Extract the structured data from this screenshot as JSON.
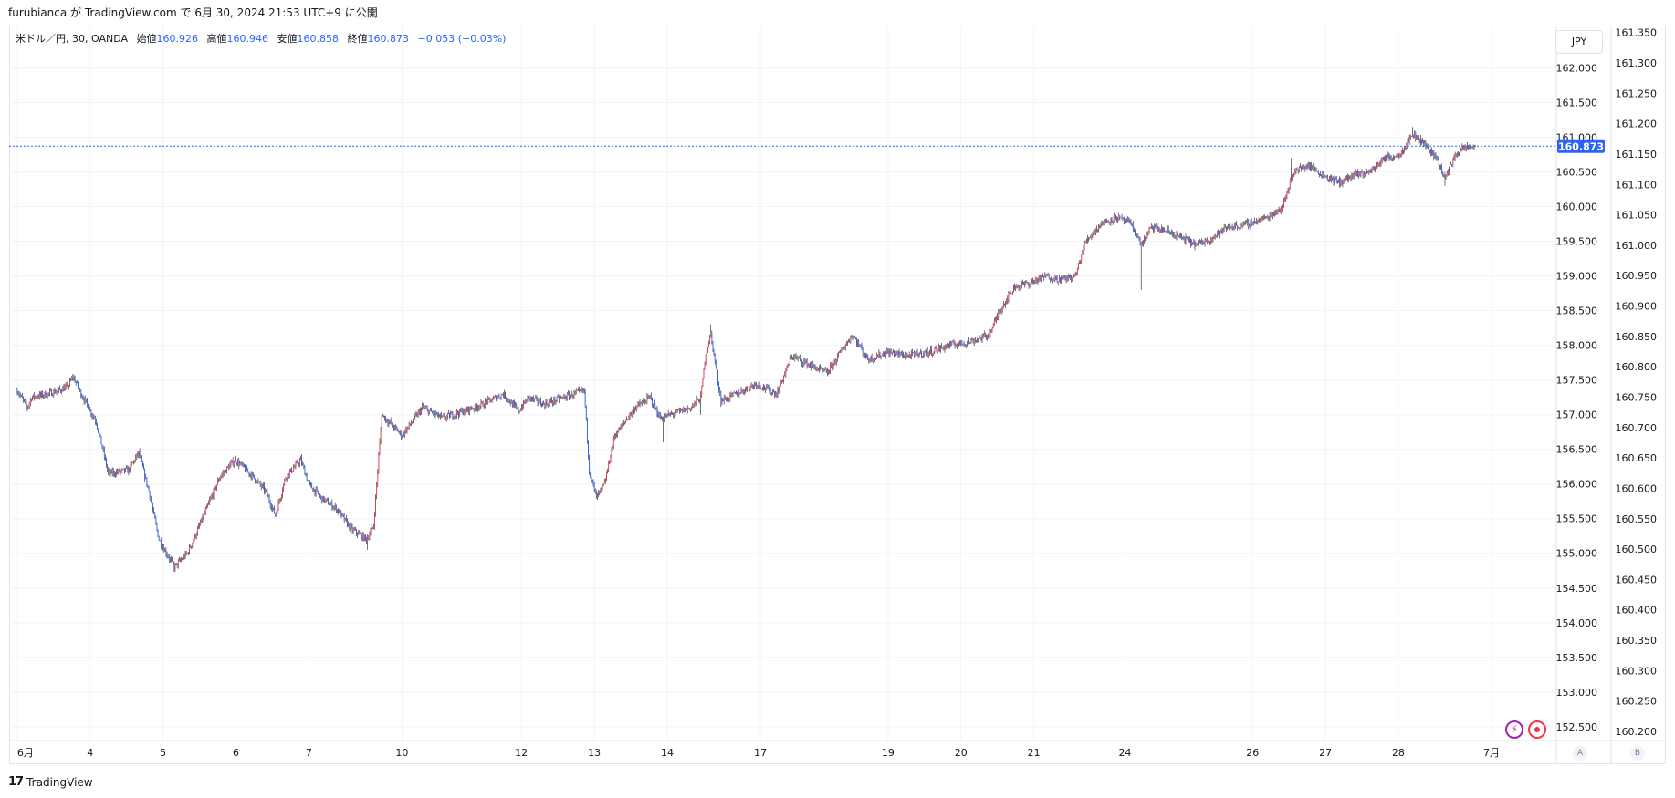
{
  "caption": {
    "text": "furubianca が TradingView.com で 6月 30, 2024 21:53 UTC+9 に公開"
  },
  "legend": {
    "symbol": "米ドル／円, 30, OANDA",
    "open_label": "始値",
    "open": "160.926",
    "high_label": "高値",
    "high": "160.946",
    "low_label": "安値",
    "low": "160.858",
    "close_label": "終値",
    "close": "160.873",
    "change": "−0.053 (−0.03%)"
  },
  "currency_button": "JPY",
  "footer": {
    "logo_mark": "17",
    "logo_text": "TradingView"
  },
  "scale_buttons": {
    "a": "A",
    "b": "B"
  },
  "icons": {
    "flash": "lightning-icon",
    "record": "record-icon"
  },
  "colors": {
    "up": "#f23645",
    "down": "#2962ff",
    "wick": "#131722",
    "price_line": "#2962ff",
    "grid": "#f0f3fa",
    "axis_text": "#131722"
  },
  "chart_data": {
    "type": "candlestick",
    "symbol": "USDJPY",
    "interval": "30",
    "last_price": 160.873,
    "last_price_label": "160.873",
    "inner_axis": {
      "ylim": [
        152.3,
        162.6
      ],
      "ticks": [
        "162.000",
        "161.500",
        "161.000",
        "160.500",
        "160.000",
        "159.500",
        "159.000",
        "158.500",
        "158.000",
        "157.500",
        "157.000",
        "156.500",
        "156.000",
        "155.500",
        "155.000",
        "154.500",
        "154.000",
        "153.500",
        "153.000",
        "152.500"
      ]
    },
    "outer_axis": {
      "ylim": [
        160.185,
        161.36
      ],
      "ticks": [
        "161.350",
        "161.300",
        "161.250",
        "161.200",
        "161.150",
        "161.100",
        "161.050",
        "161.000",
        "160.950",
        "160.900",
        "160.850",
        "160.800",
        "160.750",
        "160.700",
        "160.650",
        "160.600",
        "160.550",
        "160.500",
        "160.450",
        "160.400",
        "160.350",
        "160.300",
        "160.250",
        "160.200"
      ]
    },
    "x_ticks": [
      "6月",
      "4",
      "5",
      "6",
      "7",
      "10",
      "12",
      "13",
      "14",
      "17",
      "19",
      "20",
      "21",
      "24",
      "26",
      "27",
      "28",
      "7月"
    ],
    "x_tick_index": [
      0,
      72,
      144,
      216,
      288,
      380,
      498,
      570,
      642,
      734,
      860,
      932,
      1004,
      1094,
      1220,
      1292,
      1364,
      1456
    ],
    "x_range": [
      -8,
      1520
    ],
    "anchors": [
      [
        0,
        157.35
      ],
      [
        10,
        157.1
      ],
      [
        14,
        157.25
      ],
      [
        30,
        157.3
      ],
      [
        50,
        157.4
      ],
      [
        55,
        157.55
      ],
      [
        65,
        157.25
      ],
      [
        78,
        156.9
      ],
      [
        90,
        156.15
      ],
      [
        110,
        156.2
      ],
      [
        120,
        156.45
      ],
      [
        130,
        155.9
      ],
      [
        140,
        155.2
      ],
      [
        155,
        154.8
      ],
      [
        168,
        155.0
      ],
      [
        180,
        155.4
      ],
      [
        200,
        156.1
      ],
      [
        215,
        156.35
      ],
      [
        230,
        156.15
      ],
      [
        245,
        155.9
      ],
      [
        255,
        155.55
      ],
      [
        265,
        156.1
      ],
      [
        280,
        156.35
      ],
      [
        288,
        156.0
      ],
      [
        300,
        155.8
      ],
      [
        315,
        155.65
      ],
      [
        330,
        155.35
      ],
      [
        345,
        155.2
      ],
      [
        352,
        155.4
      ],
      [
        360,
        157.0
      ],
      [
        380,
        156.7
      ],
      [
        400,
        157.1
      ],
      [
        420,
        156.95
      ],
      [
        440,
        157.05
      ],
      [
        460,
        157.15
      ],
      [
        480,
        157.3
      ],
      [
        495,
        157.05
      ],
      [
        505,
        157.25
      ],
      [
        520,
        157.15
      ],
      [
        540,
        157.25
      ],
      [
        560,
        157.35
      ],
      [
        565,
        156.2
      ],
      [
        572,
        155.8
      ],
      [
        580,
        156.0
      ],
      [
        590,
        156.7
      ],
      [
        610,
        157.1
      ],
      [
        625,
        157.25
      ],
      [
        635,
        156.95
      ],
      [
        645,
        157.0
      ],
      [
        665,
        157.1
      ],
      [
        675,
        157.25
      ],
      [
        680,
        157.9
      ],
      [
        685,
        158.15
      ],
      [
        695,
        157.2
      ],
      [
        710,
        157.3
      ],
      [
        730,
        157.45
      ],
      [
        750,
        157.3
      ],
      [
        765,
        157.85
      ],
      [
        785,
        157.7
      ],
      [
        800,
        157.6
      ],
      [
        815,
        157.95
      ],
      [
        825,
        158.15
      ],
      [
        840,
        157.8
      ],
      [
        860,
        157.9
      ],
      [
        880,
        157.85
      ],
      [
        900,
        157.9
      ],
      [
        920,
        158.0
      ],
      [
        940,
        158.05
      ],
      [
        960,
        158.15
      ],
      [
        970,
        158.5
      ],
      [
        985,
        158.85
      ],
      [
        1000,
        158.9
      ],
      [
        1015,
        159.0
      ],
      [
        1030,
        158.95
      ],
      [
        1045,
        159.0
      ],
      [
        1055,
        159.5
      ],
      [
        1070,
        159.75
      ],
      [
        1085,
        159.85
      ],
      [
        1100,
        159.75
      ],
      [
        1110,
        159.45
      ],
      [
        1120,
        159.7
      ],
      [
        1135,
        159.65
      ],
      [
        1150,
        159.55
      ],
      [
        1165,
        159.45
      ],
      [
        1180,
        159.55
      ],
      [
        1195,
        159.7
      ],
      [
        1215,
        159.75
      ],
      [
        1235,
        159.85
      ],
      [
        1250,
        160.0
      ],
      [
        1260,
        160.5
      ],
      [
        1275,
        160.6
      ],
      [
        1290,
        160.45
      ],
      [
        1305,
        160.35
      ],
      [
        1320,
        160.45
      ],
      [
        1335,
        160.5
      ],
      [
        1350,
        160.7
      ],
      [
        1365,
        160.75
      ],
      [
        1378,
        161.05
      ],
      [
        1390,
        160.9
      ],
      [
        1402,
        160.7
      ],
      [
        1410,
        160.4
      ],
      [
        1420,
        160.75
      ],
      [
        1430,
        160.85
      ],
      [
        1440,
        160.873
      ]
    ],
    "spikes": [
      {
        "i": 1110,
        "low": 158.8
      },
      {
        "i": 675,
        "low": 157.0
      },
      {
        "i": 638,
        "low": 156.6
      },
      {
        "i": 346,
        "low": 155.05
      },
      {
        "i": 1378,
        "high": 161.15
      },
      {
        "i": 1410,
        "low": 160.3
      },
      {
        "i": 1258,
        "high": 160.7
      },
      {
        "i": 685,
        "high": 158.3
      }
    ]
  }
}
